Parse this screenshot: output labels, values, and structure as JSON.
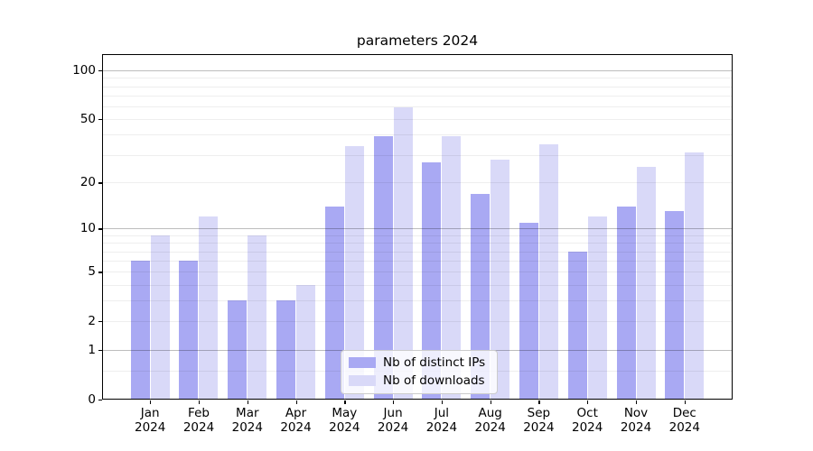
{
  "figure": {
    "title": "parameters 2024",
    "background_color": "#ffffff"
  },
  "chart_data": {
    "type": "bar",
    "title": "parameters 2024",
    "categories": [
      "Jan 2024",
      "Feb 2024",
      "Mar 2024",
      "Apr 2024",
      "May 2024",
      "Jun 2024",
      "Jul 2024",
      "Aug 2024",
      "Sep 2024",
      "Oct 2024",
      "Nov 2024",
      "Dec 2024"
    ],
    "x_tick_month_labels": [
      "Jan",
      "Feb",
      "Mar",
      "Apr",
      "May",
      "Jun",
      "Jul",
      "Aug",
      "Sep",
      "Oct",
      "Nov",
      "Dec"
    ],
    "x_tick_year_label": "2024",
    "series": [
      {
        "name": "Nb of distinct IPs",
        "color": "#a9a9f3",
        "values": [
          6,
          6,
          3,
          3,
          14,
          39,
          27,
          17,
          11,
          7,
          14,
          13
        ]
      },
      {
        "name": "Nb of downloads",
        "color": "#d9d9f8",
        "values": [
          9,
          12,
          9,
          4,
          34,
          59,
          39,
          28,
          35,
          12,
          25,
          31
        ]
      }
    ],
    "xlabel": "",
    "ylabel": "",
    "yscale": "log(value+1)",
    "ylim": [
      0,
      126
    ],
    "y_tick_values": [
      0,
      1,
      2,
      5,
      10,
      20,
      50,
      100
    ],
    "y_tick_labels": [
      "0",
      "1",
      "2",
      "5",
      "10",
      "20",
      "50",
      "100"
    ],
    "grid": "on",
    "grid_major_values": [
      1,
      10,
      100
    ],
    "grid_minor_values": [
      0.5,
      2,
      3,
      4,
      5,
      6,
      7,
      8,
      9,
      20,
      30,
      40,
      50,
      60,
      70,
      80,
      90
    ],
    "grid_major_color": "rgba(0,0,0,0.26)",
    "grid_minor_color": "rgba(0,0,0,0.065)",
    "legend_position": "lower center",
    "legend_entries": [
      "Nb of distinct IPs",
      "Nb of downloads"
    ]
  }
}
